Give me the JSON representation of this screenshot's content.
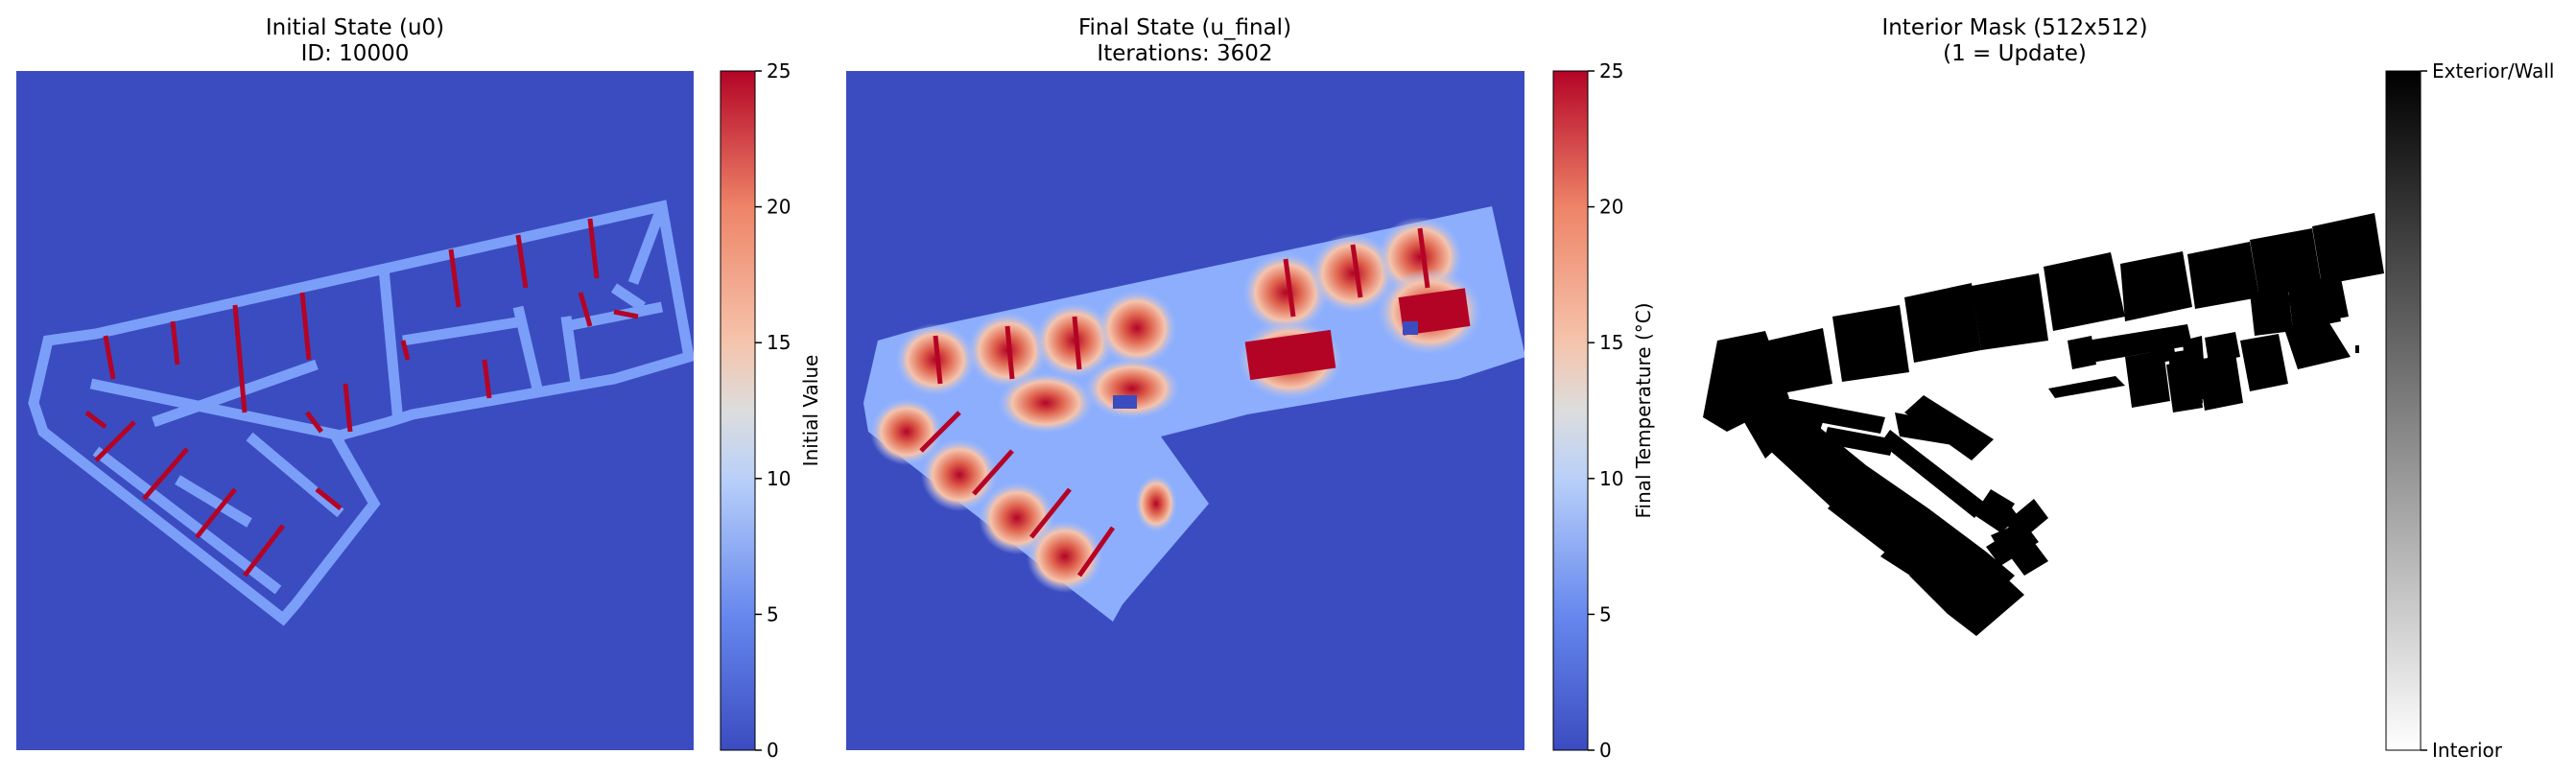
{
  "colors": {
    "coolwarm_low": "#3b4cc0",
    "coolwarm_mid": "#dddddd",
    "coolwarm_high": "#b40426",
    "wall_blue": "#7b9ff9",
    "mask_interior": "#000000",
    "mask_exterior": "#ffffff"
  },
  "chart_data": [
    {
      "type": "heatmap",
      "title_line1": "Initial State (u0)",
      "title_line2": "ID: 10000",
      "colorbar": {
        "label": "Initial Value",
        "ticks": [
          "0",
          "5",
          "10",
          "15",
          "20",
          "25"
        ],
        "vmin": 0,
        "vmax": 25,
        "cmap": "coolwarm"
      }
    },
    {
      "type": "heatmap",
      "title_line1": "Final State (u_final)",
      "title_line2": "Iterations: 3602",
      "colorbar": {
        "label": "Final Temperature (°C)",
        "ticks": [
          "0",
          "5",
          "10",
          "15",
          "20",
          "25"
        ],
        "vmin": 0,
        "vmax": 25,
        "cmap": "coolwarm"
      }
    },
    {
      "type": "heatmap",
      "title_line1": "Interior Mask (512x512)",
      "title_line2": "(1 = Update)",
      "colorbar": {
        "label": "",
        "ticks": [
          "Interior",
          "Exterior/Wall"
        ],
        "vmin": 0,
        "vmax": 1,
        "cmap": "gray_r"
      }
    }
  ]
}
